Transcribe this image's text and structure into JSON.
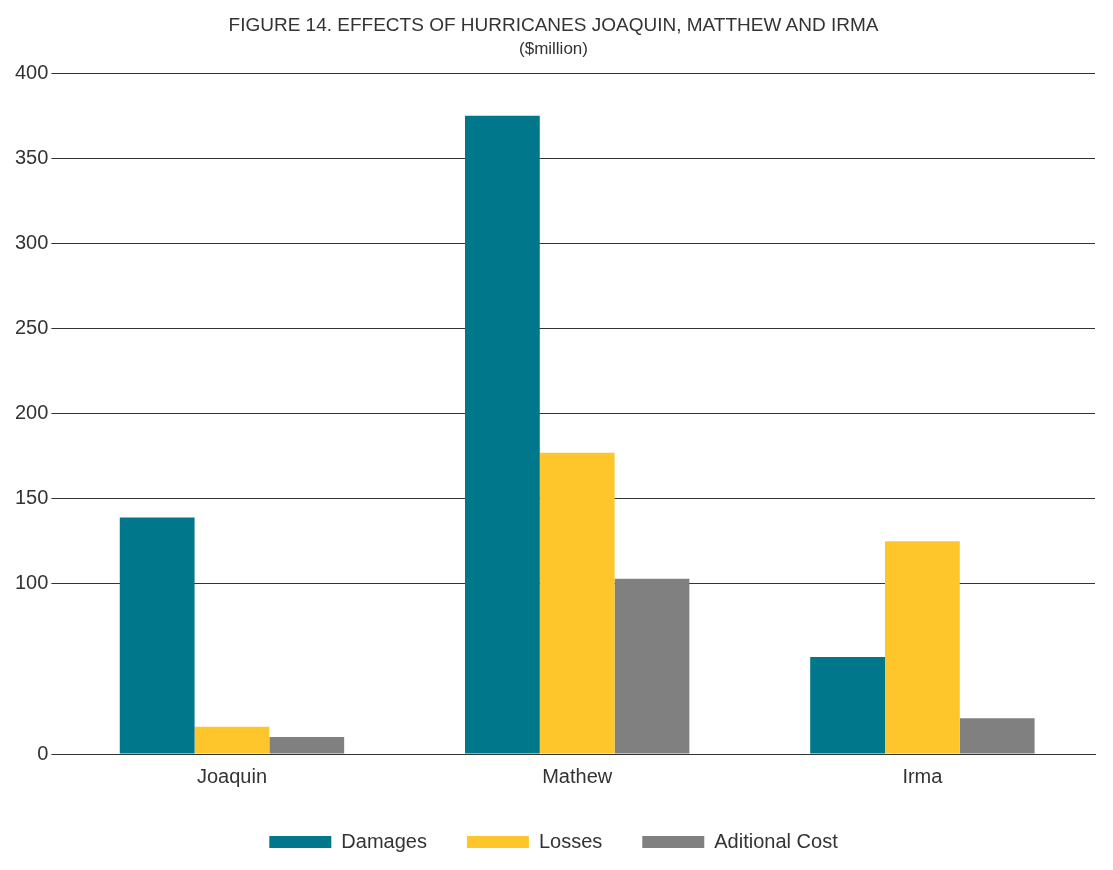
{
  "chart_data": {
    "type": "bar",
    "title": "FIGURE 14. EFFECTS OF HURRICANES JOAQUIN, MATTHEW AND IRMA",
    "subtitle": "($million)",
    "categories": [
      "Joaquin",
      "Mathew",
      "Irma"
    ],
    "series": [
      {
        "name": "Damages",
        "color": "#00778a",
        "values": [
          139,
          375,
          57
        ]
      },
      {
        "name": "Losses",
        "color": "#ffc62b",
        "values": [
          16,
          177,
          125
        ]
      },
      {
        "name": "Aditional Cost",
        "color": "#808080",
        "values": [
          10,
          103,
          21
        ]
      }
    ],
    "ylim": [
      0,
      400
    ],
    "yticks": [
      0,
      100,
      150,
      200,
      250,
      300,
      350,
      400
    ],
    "grid": "y",
    "legend": "bottom"
  }
}
